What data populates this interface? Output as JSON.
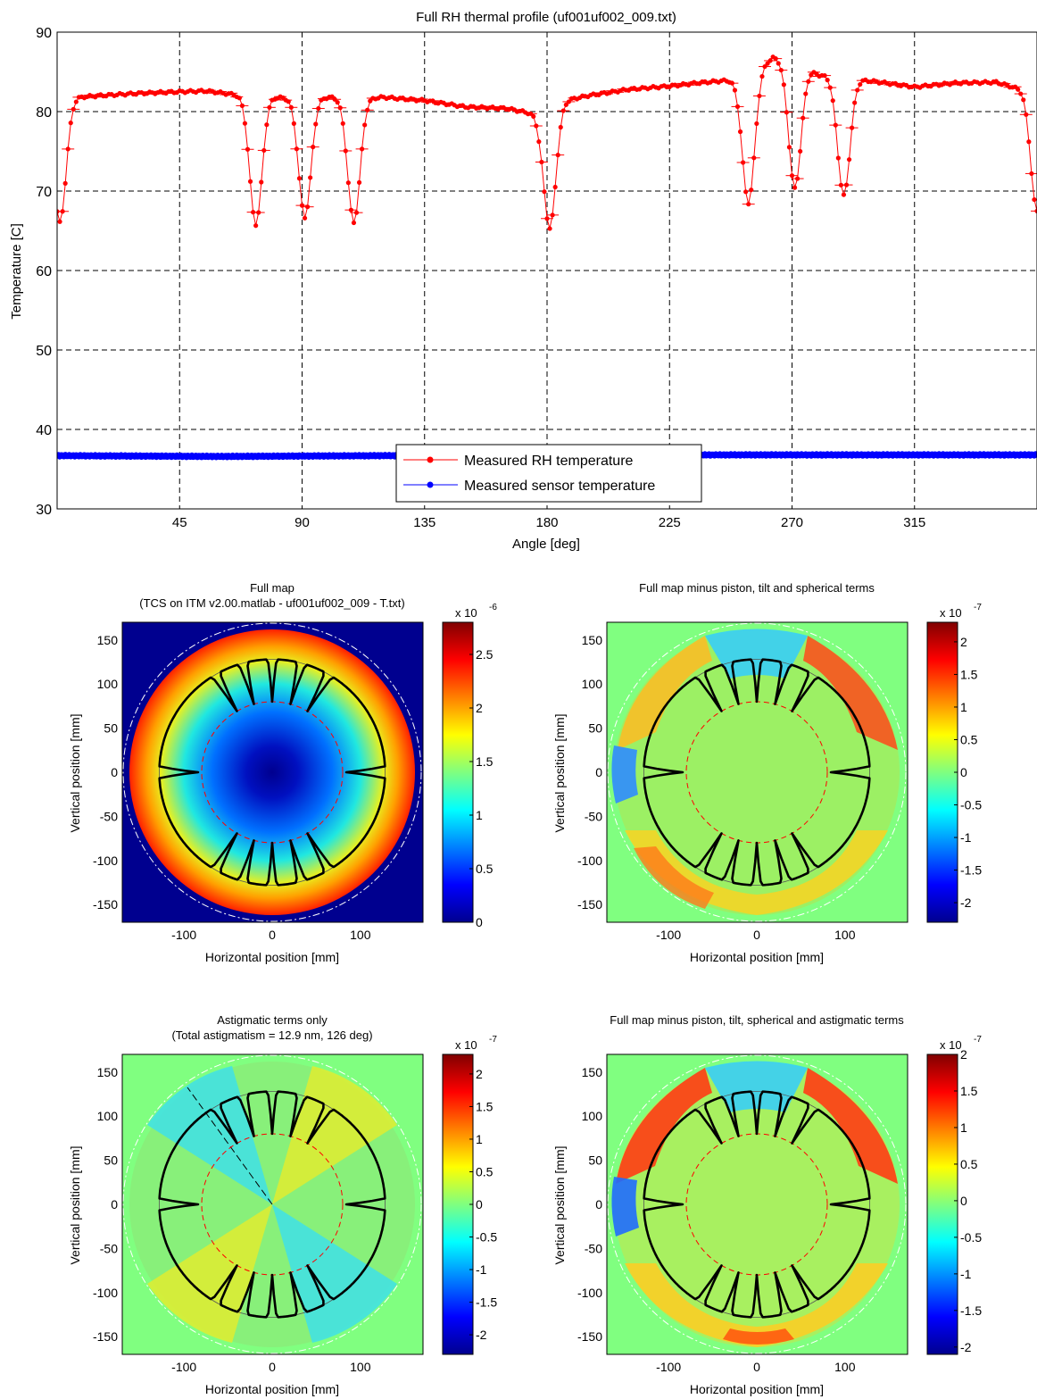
{
  "chart_data": [
    {
      "type": "line",
      "title": "Full RH thermal profile (uf001uf002_009.txt)",
      "xlabel": "Angle [deg]",
      "ylabel": "Temperature [C]",
      "xlim": [
        0,
        360
      ],
      "ylim": [
        30,
        90
      ],
      "xticks": [
        45,
        90,
        135,
        180,
        225,
        270,
        315
      ],
      "yticks": [
        30,
        40,
        50,
        60,
        70,
        80,
        90
      ],
      "grid": true,
      "legend_position": "bottom-center",
      "series": [
        {
          "name": "Measured RH temperature",
          "color": "#ff0000",
          "baseline": [
            [
              0,
              81.6
            ],
            [
              15,
              82.0
            ],
            [
              30,
              82.3
            ],
            [
              45,
              82.5
            ],
            [
              55,
              82.6
            ],
            [
              66,
              82.1
            ],
            [
              80,
              81.8
            ],
            [
              90,
              81.6
            ],
            [
              100,
              81.8
            ],
            [
              110,
              81.6
            ],
            [
              120,
              81.8
            ],
            [
              135,
              81.4
            ],
            [
              150,
              80.6
            ],
            [
              165,
              80.4
            ],
            [
              177,
              79.6
            ],
            [
              180,
              80.9
            ],
            [
              195,
              82.0
            ],
            [
              210,
              82.8
            ],
            [
              225,
              83.2
            ],
            [
              235,
              83.6
            ],
            [
              249,
              84.0
            ],
            [
              256,
              85.0
            ],
            [
              263,
              86.8
            ],
            [
              268,
              86.5
            ],
            [
              272,
              86.0
            ],
            [
              280,
              84.6
            ],
            [
              290,
              84.2
            ],
            [
              300,
              83.8
            ],
            [
              315,
              83.1
            ],
            [
              330,
              83.6
            ],
            [
              345,
              83.7
            ],
            [
              352,
              83.0
            ],
            [
              357,
              82.6
            ]
          ],
          "dips": [
            [
              1,
              66.0
            ],
            [
              73,
              65.8
            ],
            [
              91,
              66.7
            ],
            [
              109,
              66.0
            ],
            [
              181,
              65.3
            ],
            [
              254,
              68.5
            ],
            [
              271,
              70.3
            ],
            [
              289,
              69.4
            ],
            [
              360,
              67.4
            ]
          ]
        },
        {
          "name": "Measured sensor temperature",
          "color": "#0000ff",
          "values": [
            [
              0,
              36.7
            ],
            [
              60,
              36.6
            ],
            [
              120,
              36.7
            ],
            [
              180,
              36.7
            ],
            [
              240,
              36.8
            ],
            [
              300,
              36.8
            ],
            [
              360,
              36.8
            ]
          ]
        }
      ]
    },
    {
      "type": "heatmap",
      "title": "Full map",
      "subtitle": "(TCS on ITM v2.00.matlab - uf001uf002_009 - T.txt)",
      "xlabel": "Horizontal position [mm]",
      "ylabel": "Vertical position [mm]",
      "xticks": [
        -100,
        0,
        100
      ],
      "yticks": [
        150,
        100,
        50,
        0,
        -50,
        -100,
        -150
      ],
      "xlim": [
        -170,
        170
      ],
      "ylim": [
        -170,
        170
      ],
      "colorbar": {
        "exponent": "x 10",
        "power": "-6",
        "min": 0,
        "max": 2.8,
        "ticks": [
          0,
          0.5,
          1,
          1.5,
          2,
          2.5
        ]
      },
      "pattern": "radial"
    },
    {
      "type": "heatmap",
      "title": "Full map minus piston, tilt and spherical terms",
      "xlabel": "Horizontal position [mm]",
      "ylabel": "Vertical position [mm]",
      "xticks": [
        -100,
        0,
        100
      ],
      "yticks": [
        150,
        100,
        50,
        0,
        -50,
        -100,
        -150
      ],
      "xlim": [
        -170,
        170
      ],
      "ylim": [
        -170,
        170
      ],
      "colorbar": {
        "exponent": "x 10",
        "power": "-7",
        "min": -2.3,
        "max": 2.3,
        "ticks": [
          2,
          1.5,
          1,
          0.5,
          0,
          -0.5,
          -1,
          -1.5,
          -2
        ]
      },
      "pattern": "residual"
    },
    {
      "type": "heatmap",
      "title": "Astigmatic terms only",
      "subtitle": "(Total astigmatism = 12.9 nm, 126 deg)",
      "xlabel": "Horizontal position [mm]",
      "ylabel": "Vertical position [mm]",
      "xticks": [
        -100,
        0,
        100
      ],
      "yticks": [
        150,
        100,
        50,
        0,
        -50,
        -100,
        -150
      ],
      "xlim": [
        -170,
        170
      ],
      "ylim": [
        -170,
        170
      ],
      "colorbar": {
        "exponent": "x 10",
        "power": "-7",
        "min": -2.3,
        "max": 2.3,
        "ticks": [
          2,
          1.5,
          1,
          0.5,
          0,
          -0.5,
          -1,
          -1.5,
          -2
        ]
      },
      "pattern": "astig"
    },
    {
      "type": "heatmap",
      "title": "Full map minus piston, tilt, spherical and astigmatic terms",
      "xlabel": "Horizontal position [mm]",
      "ylabel": "Vertical position [mm]",
      "xticks": [
        -100,
        0,
        100
      ],
      "yticks": [
        150,
        100,
        50,
        0,
        -50,
        -100,
        -150
      ],
      "xlim": [
        -170,
        170
      ],
      "ylim": [
        -170,
        170
      ],
      "colorbar": {
        "exponent": "x 10",
        "power": "-7",
        "min": -2.1,
        "max": 2.0,
        "ticks": [
          2,
          1.5,
          1,
          0.5,
          0,
          -0.5,
          -1,
          -1.5,
          -2
        ]
      },
      "pattern": "residual2"
    }
  ]
}
